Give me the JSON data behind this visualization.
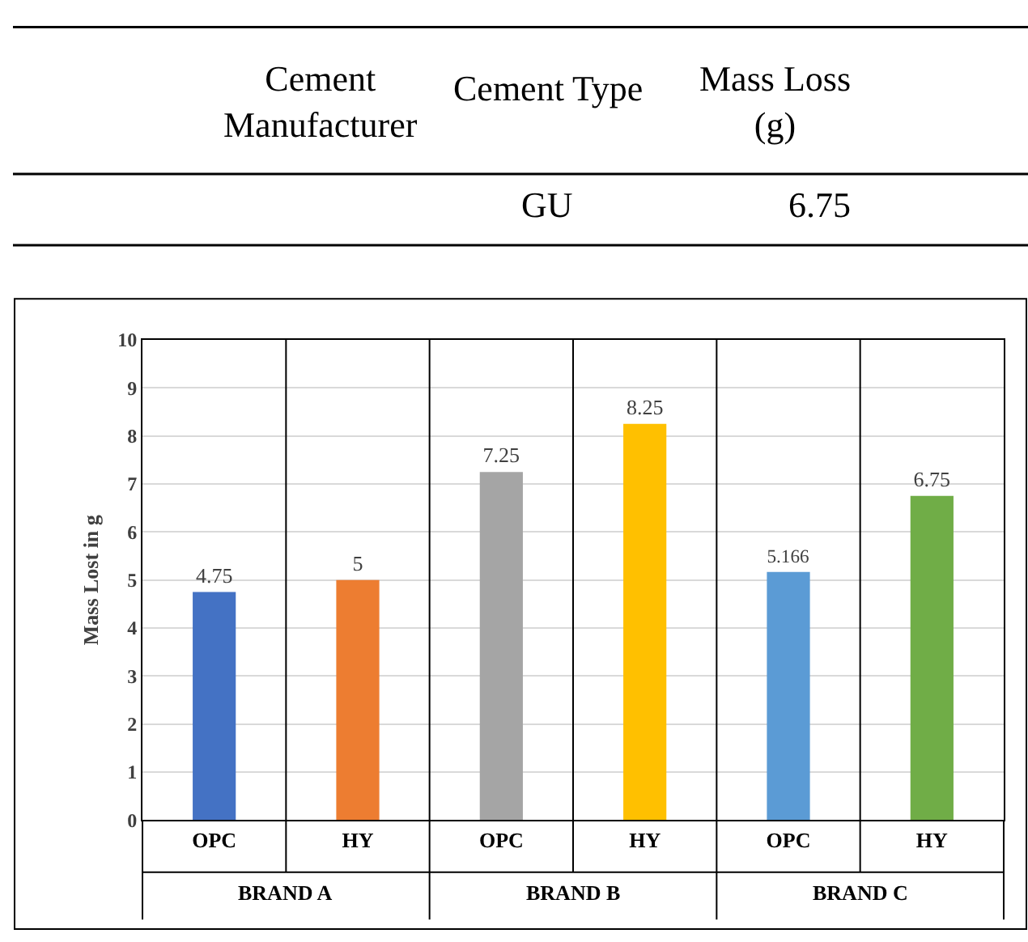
{
  "chart_data": [
    {
      "type": "other",
      "annotations": [
        "Cement\nManufacturer",
        "Cement Type",
        "Mass Loss\n(g)",
        "GU",
        "6.75"
      ]
    },
    {
      "type": "bar",
      "categories": [
        "OPC",
        "HY",
        "OPC",
        "HY",
        "OPC",
        "HY"
      ],
      "values": [
        4.75,
        5,
        7.25,
        8.25,
        5.166,
        6.75
      ],
      "colors": [
        "#4472c4",
        "#ed7d31",
        "#a5a5a5",
        "#ffc000",
        "#5b9bd5",
        "#70ad47"
      ],
      "ylabel": "Mass Lost in g",
      "ylim": [
        0,
        10
      ],
      "yticks": [
        0,
        1,
        2,
        3,
        4,
        5,
        6,
        7,
        8,
        9,
        10
      ],
      "grid": "y",
      "data_labels": true,
      "annotations": [
        "BRAND A",
        "BRAND B",
        "BRAND C"
      ]
    }
  ]
}
